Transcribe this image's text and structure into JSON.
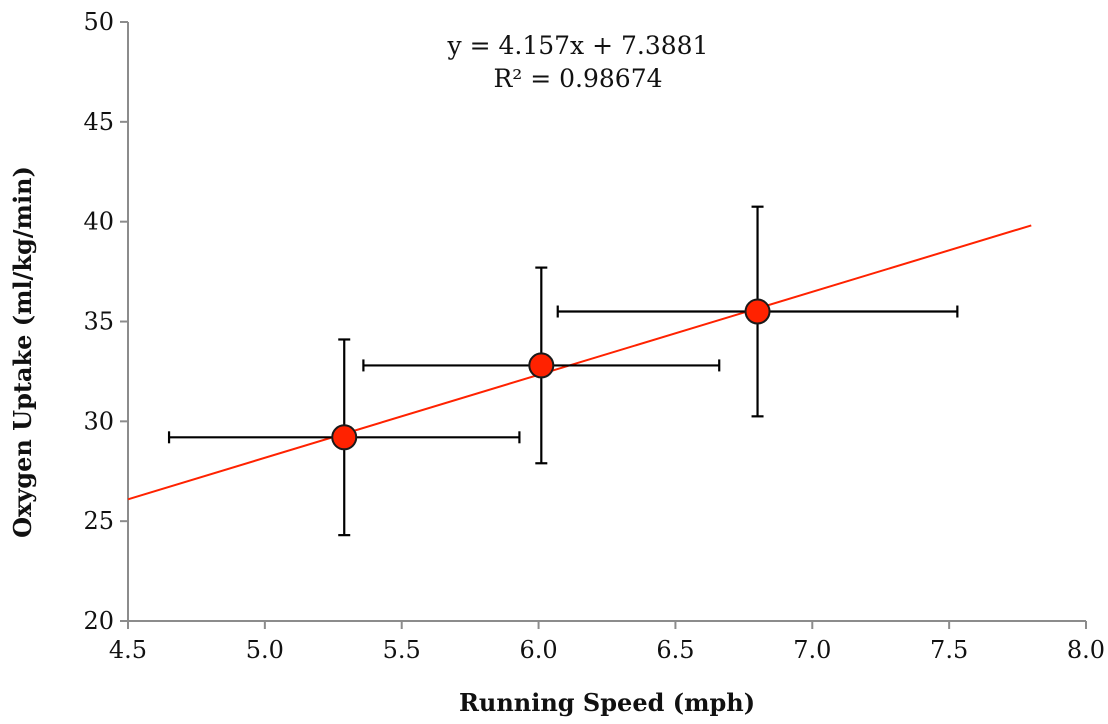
{
  "chart_data": {
    "type": "scatter",
    "title": "",
    "xlabel": "Running Speed (mph)",
    "ylabel": "Oxygen Uptake (ml/kg/min)",
    "xlim": [
      4.5,
      8.0
    ],
    "ylim": [
      20,
      50
    ],
    "x_ticks": [
      "4.5",
      "5.0",
      "5.5",
      "6.0",
      "6.5",
      "7.0",
      "7.5",
      "8.0"
    ],
    "y_ticks": [
      "20",
      "25",
      "30",
      "35",
      "40",
      "45",
      "50"
    ],
    "grid": false,
    "legend": "none",
    "points": [
      {
        "x": 5.29,
        "y": 29.2,
        "x_err": 0.64,
        "y_err": 4.9
      },
      {
        "x": 6.01,
        "y": 32.8,
        "x_err": 0.65,
        "y_err": 4.9
      },
      {
        "x": 6.8,
        "y": 35.5,
        "x_err": 0.73,
        "y_err": 5.25
      }
    ],
    "trendline": {
      "slope": 4.157,
      "intercept": 7.3881,
      "x_range": [
        4.5,
        7.8
      ]
    },
    "annotations": {
      "equation": "y = 4.157x + 7.3881",
      "r_squared": "R² = 0.98674"
    },
    "colors": {
      "marker_fill": "#ff2200",
      "trendline": "#ff2200",
      "error_bars": "#000000",
      "axis": "#8c8c8c"
    }
  }
}
